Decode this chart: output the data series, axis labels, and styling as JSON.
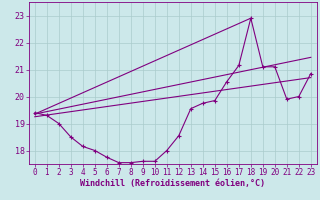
{
  "xlabel": "Windchill (Refroidissement éolien,°C)",
  "bg_color": "#cce8ea",
  "line_color": "#800080",
  "grid_color": "#aacccc",
  "xlim": [
    -0.5,
    23.5
  ],
  "ylim": [
    17.5,
    23.5
  ],
  "yticks": [
    18,
    19,
    20,
    21,
    22,
    23
  ],
  "xticks": [
    0,
    1,
    2,
    3,
    4,
    5,
    6,
    7,
    8,
    9,
    10,
    11,
    12,
    13,
    14,
    15,
    16,
    17,
    18,
    19,
    20,
    21,
    22,
    23
  ],
  "main_line_x": [
    0,
    1,
    2,
    3,
    4,
    5,
    6,
    7,
    8,
    9,
    10,
    11,
    12,
    13,
    14,
    15,
    16,
    17,
    18,
    19,
    20,
    21,
    22,
    23
  ],
  "main_line_y": [
    19.4,
    19.3,
    19.0,
    18.5,
    18.15,
    18.0,
    17.75,
    17.55,
    17.55,
    17.6,
    17.6,
    18.0,
    18.55,
    19.55,
    19.75,
    19.85,
    20.55,
    21.15,
    22.9,
    21.1,
    21.1,
    19.9,
    20.0,
    20.85
  ],
  "trend1_x": [
    0,
    23
  ],
  "trend1_y": [
    19.35,
    21.45
  ],
  "trend2_x": [
    0,
    23
  ],
  "trend2_y": [
    19.25,
    20.7
  ],
  "trend3_x": [
    0,
    18
  ],
  "trend3_y": [
    19.35,
    22.9
  ],
  "font_color": "#800080",
  "tick_fontsize": 5.5,
  "xlabel_fontsize": 6.0
}
